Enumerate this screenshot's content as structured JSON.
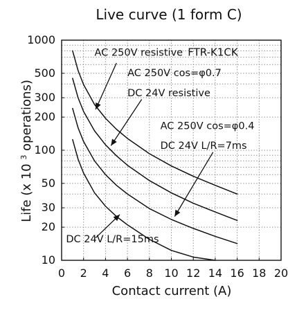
{
  "chart_data": {
    "type": "line",
    "title": "Live curve (1 form C)",
    "xlabel": "Contact current (A)",
    "ylabel": {
      "prefix": "Life (x 10",
      "superscript": "3",
      "suffix": " operations)"
    },
    "model": "FTR-K1CK",
    "x_scale": "linear",
    "y_scale": "log",
    "xlim": [
      0,
      20
    ],
    "ylim": [
      10,
      1000
    ],
    "x_ticks": [
      "0",
      "2",
      "4",
      "6",
      "8",
      "10",
      "12",
      "14",
      "16",
      "18",
      "20"
    ],
    "x_tick_values": [
      0,
      2,
      4,
      6,
      8,
      10,
      12,
      14,
      16,
      18,
      20
    ],
    "y_ticks": [
      "10",
      "20",
      "30",
      "50",
      "100",
      "200",
      "300",
      "500",
      "1000"
    ],
    "y_tick_values": [
      10,
      20,
      30,
      50,
      100,
      200,
      300,
      500,
      1000
    ],
    "grid": true,
    "colors": {
      "line": "#111111",
      "grid": "#8a8a8a",
      "axis": "#111111"
    },
    "series": [
      {
        "x": [
          1,
          1.5,
          2,
          3,
          4,
          5,
          6,
          8,
          10,
          12,
          14,
          16
        ],
        "values": [
          800,
          530,
          395,
          260,
          195,
          155,
          128,
          93,
          72,
          58,
          48,
          40
        ]
      },
      {
        "x": [
          1,
          1.5,
          2,
          3,
          4,
          5,
          6,
          8,
          10,
          12,
          14,
          16
        ],
        "values": [
          450,
          300,
          225,
          150,
          112,
          89,
          73,
          53,
          41,
          33,
          27.5,
          23
        ]
      },
      {
        "x": [
          1,
          1.5,
          2,
          3,
          4,
          5,
          6,
          8,
          10,
          12,
          14,
          16
        ],
        "values": [
          240,
          160,
          120,
          80,
          60,
          48,
          40,
          29.5,
          23.5,
          19.5,
          16.5,
          14.2
        ]
      },
      {
        "x": [
          1,
          1.5,
          2,
          3,
          4,
          5,
          6,
          8,
          10,
          12,
          14
        ],
        "values": [
          125,
          83,
          62,
          41,
          31,
          25,
          21,
          15.5,
          12.3,
          10.7,
          10
        ]
      }
    ],
    "annotations": [
      {
        "id": "ac250-resistive",
        "text": "AC 250V resistive",
        "text_x": 3.0,
        "text_y": 720,
        "arrow_from": [
          5.0,
          620
        ],
        "arrow_to": [
          3.1,
          235
        ]
      },
      {
        "id": "ac250-cos07",
        "text": "AC 250V cos=φ0.7",
        "text_x": 6.0,
        "text_y": 470,
        "arrow_from": [
          7.3,
          290
        ],
        "arrow_to": [
          4.5,
          110
        ]
      },
      {
        "id": "dc24-resistive",
        "text": "DC 24V resistive",
        "text_x": 6.0,
        "text_y": 310
      },
      {
        "id": "ac250-cos04",
        "text": "AC 250V cos=φ0.4",
        "text_x": 9.0,
        "text_y": 155,
        "arrow_from": [
          13.8,
          96
        ],
        "arrow_to": [
          10.3,
          25
        ]
      },
      {
        "id": "dc24-lr7",
        "text": "DC 24V L/R=7ms",
        "text_x": 9.0,
        "text_y": 103
      },
      {
        "id": "dc24-lr15",
        "text": "DC 24V L/R=15ms",
        "text_x": 0.4,
        "text_y": 14.6,
        "arrow_from": [
          3.1,
          16
        ],
        "arrow_to": [
          5.3,
          26
        ]
      }
    ],
    "model_label_position": {
      "x": 11.5,
      "y": 720
    }
  }
}
